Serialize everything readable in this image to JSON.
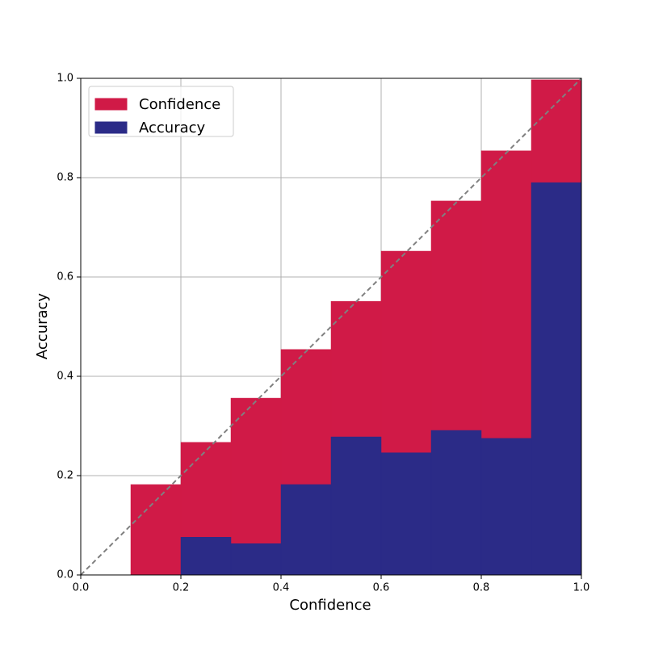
{
  "chart_data": {
    "type": "histogram",
    "xlabel": "Confidence",
    "ylabel": "Accuracy",
    "bins": [
      0,
      0.1,
      0.2,
      0.3,
      0.4,
      0.5,
      0.6,
      0.7,
      0.8,
      0.9,
      1.0
    ],
    "series": [
      {
        "name": "Confidence",
        "color": "#d01a47",
        "values": [
          0,
          0.182,
          0.267,
          0.356,
          0.454,
          0.551,
          0.652,
          0.753,
          0.854,
          0.997
        ]
      },
      {
        "name": "Accuracy",
        "color": "#2b2b87",
        "values": [
          0,
          0,
          0.076,
          0.063,
          0.182,
          0.278,
          0.246,
          0.291,
          0.275,
          0.79
        ]
      }
    ],
    "xlim": [
      0,
      1
    ],
    "ylim": [
      0,
      1
    ],
    "xticks": [
      {
        "value": 0,
        "label": "0.0"
      },
      0.2,
      0.4,
      0.6,
      0.8,
      {
        "value": 1,
        "label": "1.0"
      }
    ],
    "yticks": [
      {
        "value": 0,
        "label": "0.0"
      },
      0.2,
      0.4,
      0.6,
      0.8,
      {
        "value": 1,
        "label": "1.0"
      }
    ],
    "grid": true,
    "legend": "upper left"
  }
}
